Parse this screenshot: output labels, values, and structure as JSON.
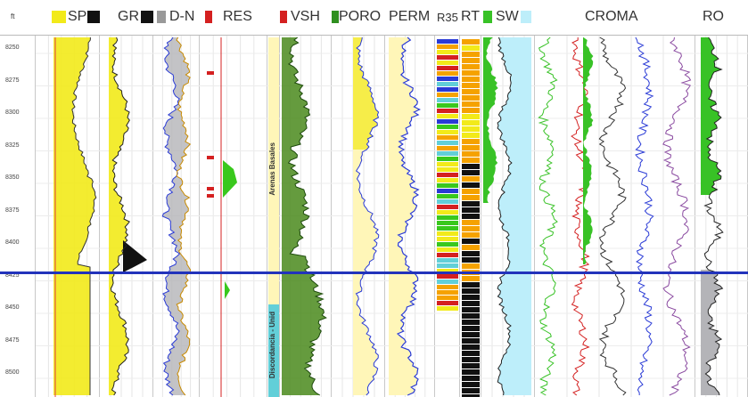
{
  "depth_track": {
    "unit_label": "ft",
    "depth_labels": [
      "8250",
      "8275",
      "8300",
      "8325",
      "8350",
      "8375",
      "8400",
      "8425",
      "8450",
      "8475",
      "8500"
    ]
  },
  "tracks": {
    "sp": {
      "label": "SP"
    },
    "gr": {
      "label": "GR"
    },
    "dn": {
      "label": "D-N"
    },
    "res": {
      "label": "RES"
    },
    "vsh": {
      "label": "VSH"
    },
    "poro": {
      "label": "PORO"
    },
    "perm": {
      "label": "PERM"
    },
    "r35": {
      "label": "R35"
    },
    "rt": {
      "label": "RT"
    },
    "sw": {
      "label": "SW"
    },
    "croma": {
      "label": "CROMA"
    },
    "ro": {
      "label": "RO"
    }
  },
  "zones": {
    "upper": "Arenas Basales",
    "lower": "Discordancia - Unid"
  },
  "colors": {
    "marker_line": "#2233bb",
    "sp_fill": "#f2ea1a",
    "gr_fill": "#f2ea1a",
    "gr_shale": "#111111",
    "dn_fill": "#b4b4b8",
    "res_fill": "#39c81d",
    "vsh_fill": "#4a8a1c",
    "poro_fill": "#fff6b8",
    "perm_line": "#2a3bd6",
    "sw_fill": "#bdeefa",
    "rt_orange": "#f5a200",
    "croma_green": "#38c226"
  }
}
